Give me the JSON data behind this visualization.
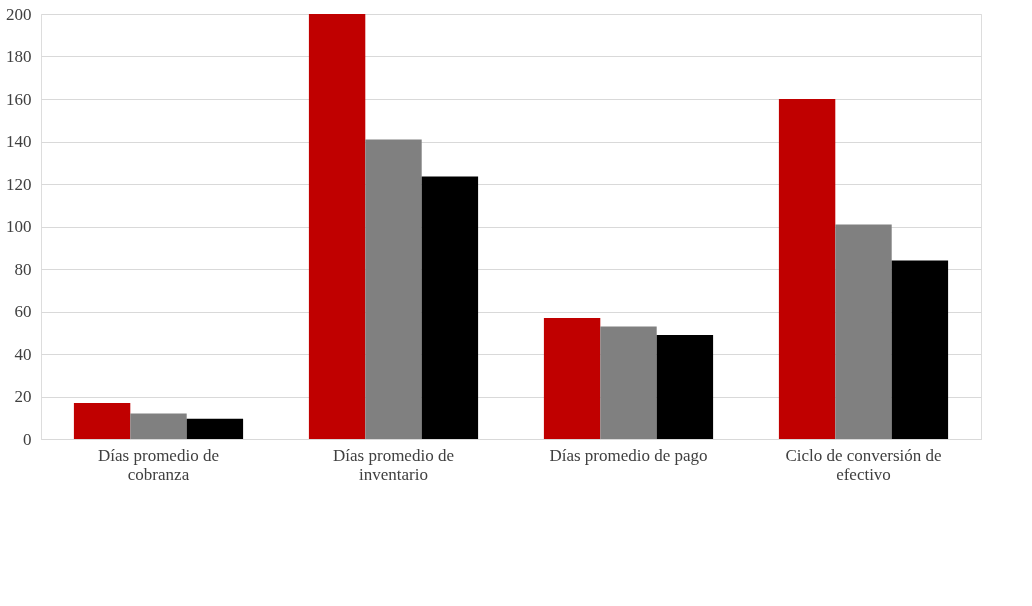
{
  "chart_data": {
    "type": "bar",
    "categories": [
      "Días promedio de cobranza",
      "Días promedio de inventario",
      "Días promedio de pago",
      "Ciclo de conversión de efectivo"
    ],
    "series": [
      {
        "color": "#c00000",
        "values": [
          17,
          200,
          57,
          160
        ]
      },
      {
        "color": "#808080",
        "values": [
          12,
          141,
          53,
          101
        ]
      },
      {
        "color": "#000000",
        "values": [
          9.5,
          123.5,
          49,
          84
        ]
      }
    ],
    "ylim": [
      0,
      200
    ],
    "yticks": [
      0,
      20,
      40,
      60,
      80,
      100,
      120,
      140,
      160,
      180,
      200
    ],
    "grid": "y",
    "legend": false
  }
}
